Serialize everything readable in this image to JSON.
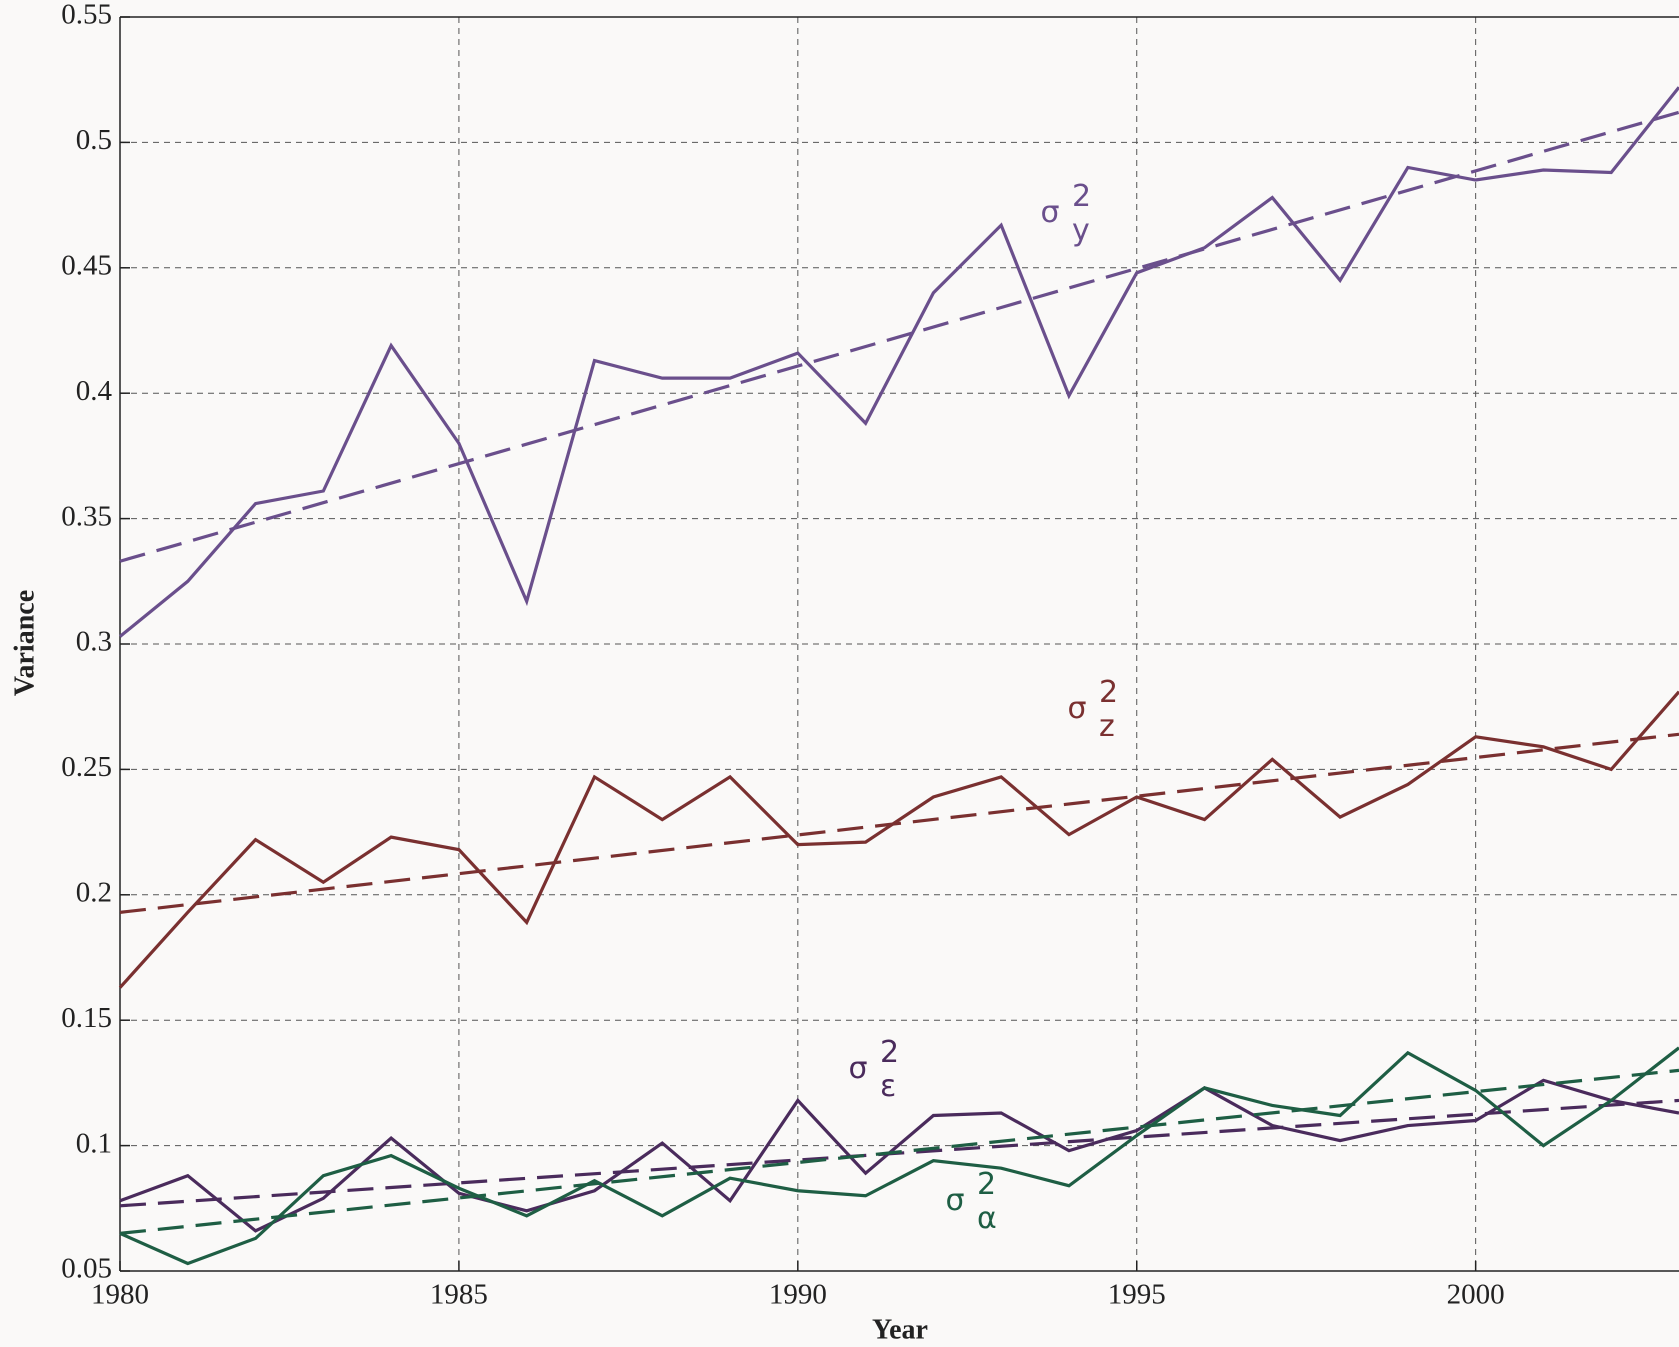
{
  "chart_data": {
    "type": "line",
    "xlabel": "Year",
    "ylabel": "Variance",
    "x": [
      1980,
      1981,
      1982,
      1983,
      1984,
      1985,
      1986,
      1987,
      1988,
      1989,
      1990,
      1991,
      1992,
      1993,
      1994,
      1995,
      1996,
      1997,
      1998,
      1999,
      2000,
      2001,
      2002,
      2003
    ],
    "xlim": [
      1980,
      2003
    ],
    "xticks": [
      1980,
      1985,
      1990,
      1995,
      2000
    ],
    "ylim": [
      0.05,
      0.55
    ],
    "yticks": [
      0.05,
      0.1,
      0.15,
      0.2,
      0.25,
      0.3,
      0.35,
      0.4,
      0.45,
      0.5,
      0.55
    ],
    "grid": true,
    "trend_x": [
      1980,
      2003
    ],
    "series": [
      {
        "label": {
          "base": "σ",
          "sup": "2",
          "sub": "y"
        },
        "color": "#6a4f8c",
        "values": [
          0.303,
          0.325,
          0.356,
          0.361,
          0.419,
          0.38,
          0.317,
          0.413,
          0.406,
          0.406,
          0.416,
          0.388,
          0.44,
          0.467,
          0.399,
          0.448,
          0.458,
          0.478,
          0.445,
          0.49,
          0.485,
          0.489,
          0.488,
          0.522
        ],
        "trend": [
          0.333,
          0.512
        ]
      },
      {
        "label": {
          "base": "σ",
          "sup": "2",
          "sub": "z"
        },
        "color": "#7a3030",
        "values": [
          0.163,
          0.193,
          0.222,
          0.205,
          0.223,
          0.218,
          0.189,
          0.247,
          0.23,
          0.247,
          0.22,
          0.221,
          0.239,
          0.247,
          0.224,
          0.239,
          0.23,
          0.254,
          0.231,
          0.244,
          0.263,
          0.259,
          0.25,
          0.281
        ],
        "trend": [
          0.193,
          0.264
        ]
      },
      {
        "label": {
          "base": "σ",
          "sup": "2",
          "sub": "ε"
        },
        "color": "#4a2b5c",
        "values": [
          0.078,
          0.088,
          0.066,
          0.079,
          0.103,
          0.081,
          0.074,
          0.082,
          0.101,
          0.078,
          0.118,
          0.089,
          0.112,
          0.113,
          0.098,
          0.106,
          0.123,
          0.108,
          0.102,
          0.108,
          0.11,
          0.126,
          0.118,
          0.113
        ],
        "trend": [
          0.076,
          0.118
        ]
      },
      {
        "label": {
          "base": "σ",
          "sup": "2",
          "sub": "α"
        },
        "color": "#1e5e44",
        "values": [
          0.065,
          0.053,
          0.063,
          0.088,
          0.096,
          0.083,
          0.072,
          0.086,
          0.072,
          0.087,
          0.082,
          0.08,
          0.094,
          0.091,
          0.084,
          0.104,
          0.123,
          0.116,
          0.112,
          0.137,
          0.122,
          0.1,
          0.118,
          0.139
        ],
        "trend": [
          0.065,
          0.13
        ]
      }
    ]
  }
}
